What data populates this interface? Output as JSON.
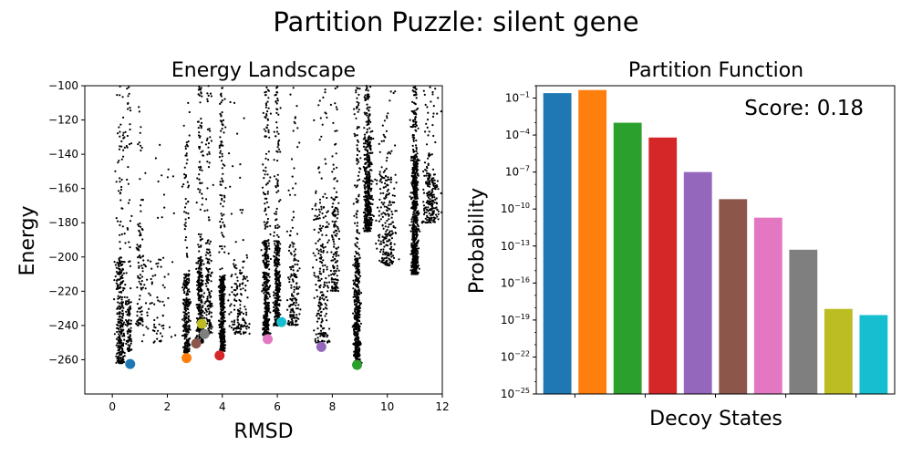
{
  "figure": {
    "title": "Partition Puzzle: silent gene"
  },
  "chart_data": [
    {
      "type": "scatter",
      "title": "Energy Landscape",
      "xlabel": "RMSD",
      "ylabel": "Energy",
      "xlim": [
        -1,
        12
      ],
      "ylim": [
        -280,
        -100
      ],
      "xticks": [
        0,
        2,
        4,
        6,
        8,
        10,
        12
      ],
      "yticks": [
        -260,
        -240,
        -220,
        -200,
        -180,
        -160,
        -140,
        -120,
        -100
      ],
      "xtick_labels": [
        "0",
        "2",
        "4",
        "6",
        "8",
        "10",
        "12"
      ],
      "ytick_labels": [
        "−260",
        "−240",
        "−220",
        "−200",
        "−180",
        "−160",
        "−140",
        "−120",
        "−100"
      ],
      "grid": false,
      "background_decoys": {
        "color": "#000000",
        "columns": [
          {
            "x": 0.3,
            "spread": 0.18,
            "ymin": -262,
            "ymax": -100,
            "dense_top": -200,
            "dense_bottom": -262,
            "count": 330
          },
          {
            "x": 0.6,
            "spread": 0.1,
            "ymin": -255,
            "ymax": -100,
            "dense_top": -225,
            "dense_bottom": -255,
            "count": 110
          },
          {
            "x": 1.0,
            "spread": 0.15,
            "ymin": -240,
            "ymax": -100,
            "dense_top": -180,
            "dense_bottom": -240,
            "count": 90
          },
          {
            "x": 1.6,
            "spread": 0.6,
            "ymin": -250,
            "ymax": -130,
            "dense_top": -200,
            "dense_bottom": -250,
            "count": 90
          },
          {
            "x": 2.7,
            "spread": 0.12,
            "ymin": -256,
            "ymax": -110,
            "dense_top": -210,
            "dense_bottom": -256,
            "count": 280
          },
          {
            "x": 3.2,
            "spread": 0.12,
            "ymin": -250,
            "ymax": -100,
            "dense_top": -200,
            "dense_bottom": -250,
            "count": 350
          },
          {
            "x": 3.5,
            "spread": 0.12,
            "ymin": -245,
            "ymax": -100,
            "dense_top": -190,
            "dense_bottom": -245,
            "count": 160
          },
          {
            "x": 4.0,
            "spread": 0.1,
            "ymin": -255,
            "ymax": -100,
            "dense_top": -210,
            "dense_bottom": -255,
            "count": 420
          },
          {
            "x": 4.6,
            "spread": 0.35,
            "ymin": -245,
            "ymax": -100,
            "dense_top": -200,
            "dense_bottom": -245,
            "count": 160
          },
          {
            "x": 5.6,
            "spread": 0.12,
            "ymin": -246,
            "ymax": -100,
            "dense_top": -190,
            "dense_bottom": -246,
            "count": 430
          },
          {
            "x": 6.0,
            "spread": 0.12,
            "ymin": -240,
            "ymax": -100,
            "dense_top": -190,
            "dense_bottom": -240,
            "count": 380
          },
          {
            "x": 6.6,
            "spread": 0.2,
            "ymin": -240,
            "ymax": -100,
            "dense_top": -190,
            "dense_bottom": -240,
            "count": 170
          },
          {
            "x": 7.6,
            "spread": 0.3,
            "ymin": -250,
            "ymax": -100,
            "dense_top": -170,
            "dense_bottom": -250,
            "count": 230
          },
          {
            "x": 8.1,
            "spread": 0.15,
            "ymin": -220,
            "ymax": -100,
            "dense_top": -165,
            "dense_bottom": -220,
            "count": 150
          },
          {
            "x": 8.9,
            "spread": 0.12,
            "ymin": -262,
            "ymax": -100,
            "dense_top": -200,
            "dense_bottom": -262,
            "count": 560
          },
          {
            "x": 9.3,
            "spread": 0.14,
            "ymin": -185,
            "ymax": -100,
            "dense_top": -130,
            "dense_bottom": -185,
            "count": 450
          },
          {
            "x": 10.0,
            "spread": 0.35,
            "ymin": -205,
            "ymax": -100,
            "dense_top": -150,
            "dense_bottom": -205,
            "count": 240
          },
          {
            "x": 11.0,
            "spread": 0.13,
            "ymin": -210,
            "ymax": -100,
            "dense_top": -140,
            "dense_bottom": -210,
            "count": 680
          },
          {
            "x": 11.6,
            "spread": 0.35,
            "ymin": -180,
            "ymax": -100,
            "dense_top": -150,
            "dense_bottom": -180,
            "count": 220
          }
        ]
      },
      "states": [
        {
          "x": 0.65,
          "y": -262.5,
          "color": "#1f77b4"
        },
        {
          "x": 2.7,
          "y": -259.0,
          "color": "#ff7f0e"
        },
        {
          "x": 3.25,
          "y": -239.0,
          "color": "#bcbd22"
        },
        {
          "x": 3.35,
          "y": -245.0,
          "color": "#7f7f7f"
        },
        {
          "x": 3.05,
          "y": -250.5,
          "color": "#8c564b"
        },
        {
          "x": 3.9,
          "y": -257.5,
          "color": "#d62728"
        },
        {
          "x": 5.65,
          "y": -248.0,
          "color": "#e377c2"
        },
        {
          "x": 6.15,
          "y": -238.0,
          "color": "#17becf"
        },
        {
          "x": 7.6,
          "y": -252.5,
          "color": "#9467bd"
        },
        {
          "x": 8.9,
          "y": -263.0,
          "color": "#2ca02c"
        }
      ]
    },
    {
      "type": "bar",
      "title": "Partition Function",
      "xlabel": "Decoy States",
      "ylabel": "Probability",
      "yscale": "log",
      "ylim_log10": [
        -25,
        0
      ],
      "yticks_exponents": [
        -25,
        -22,
        -19,
        -16,
        -13,
        -10,
        -7,
        -4,
        -1
      ],
      "ytick_base": "10",
      "annotation": "Score: 0.18",
      "grid": false,
      "bars": [
        {
          "log10_value": -0.6,
          "color": "#1f77b4"
        },
        {
          "log10_value": -0.35,
          "color": "#ff7f0e"
        },
        {
          "log10_value": -3.0,
          "color": "#2ca02c"
        },
        {
          "log10_value": -4.2,
          "color": "#d62728"
        },
        {
          "log10_value": -7.0,
          "color": "#9467bd"
        },
        {
          "log10_value": -9.2,
          "color": "#8c564b"
        },
        {
          "log10_value": -10.7,
          "color": "#e377c2"
        },
        {
          "log10_value": -13.3,
          "color": "#7f7f7f"
        },
        {
          "log10_value": -18.1,
          "color": "#bcbd22"
        },
        {
          "log10_value": -18.6,
          "color": "#17becf"
        }
      ]
    }
  ]
}
